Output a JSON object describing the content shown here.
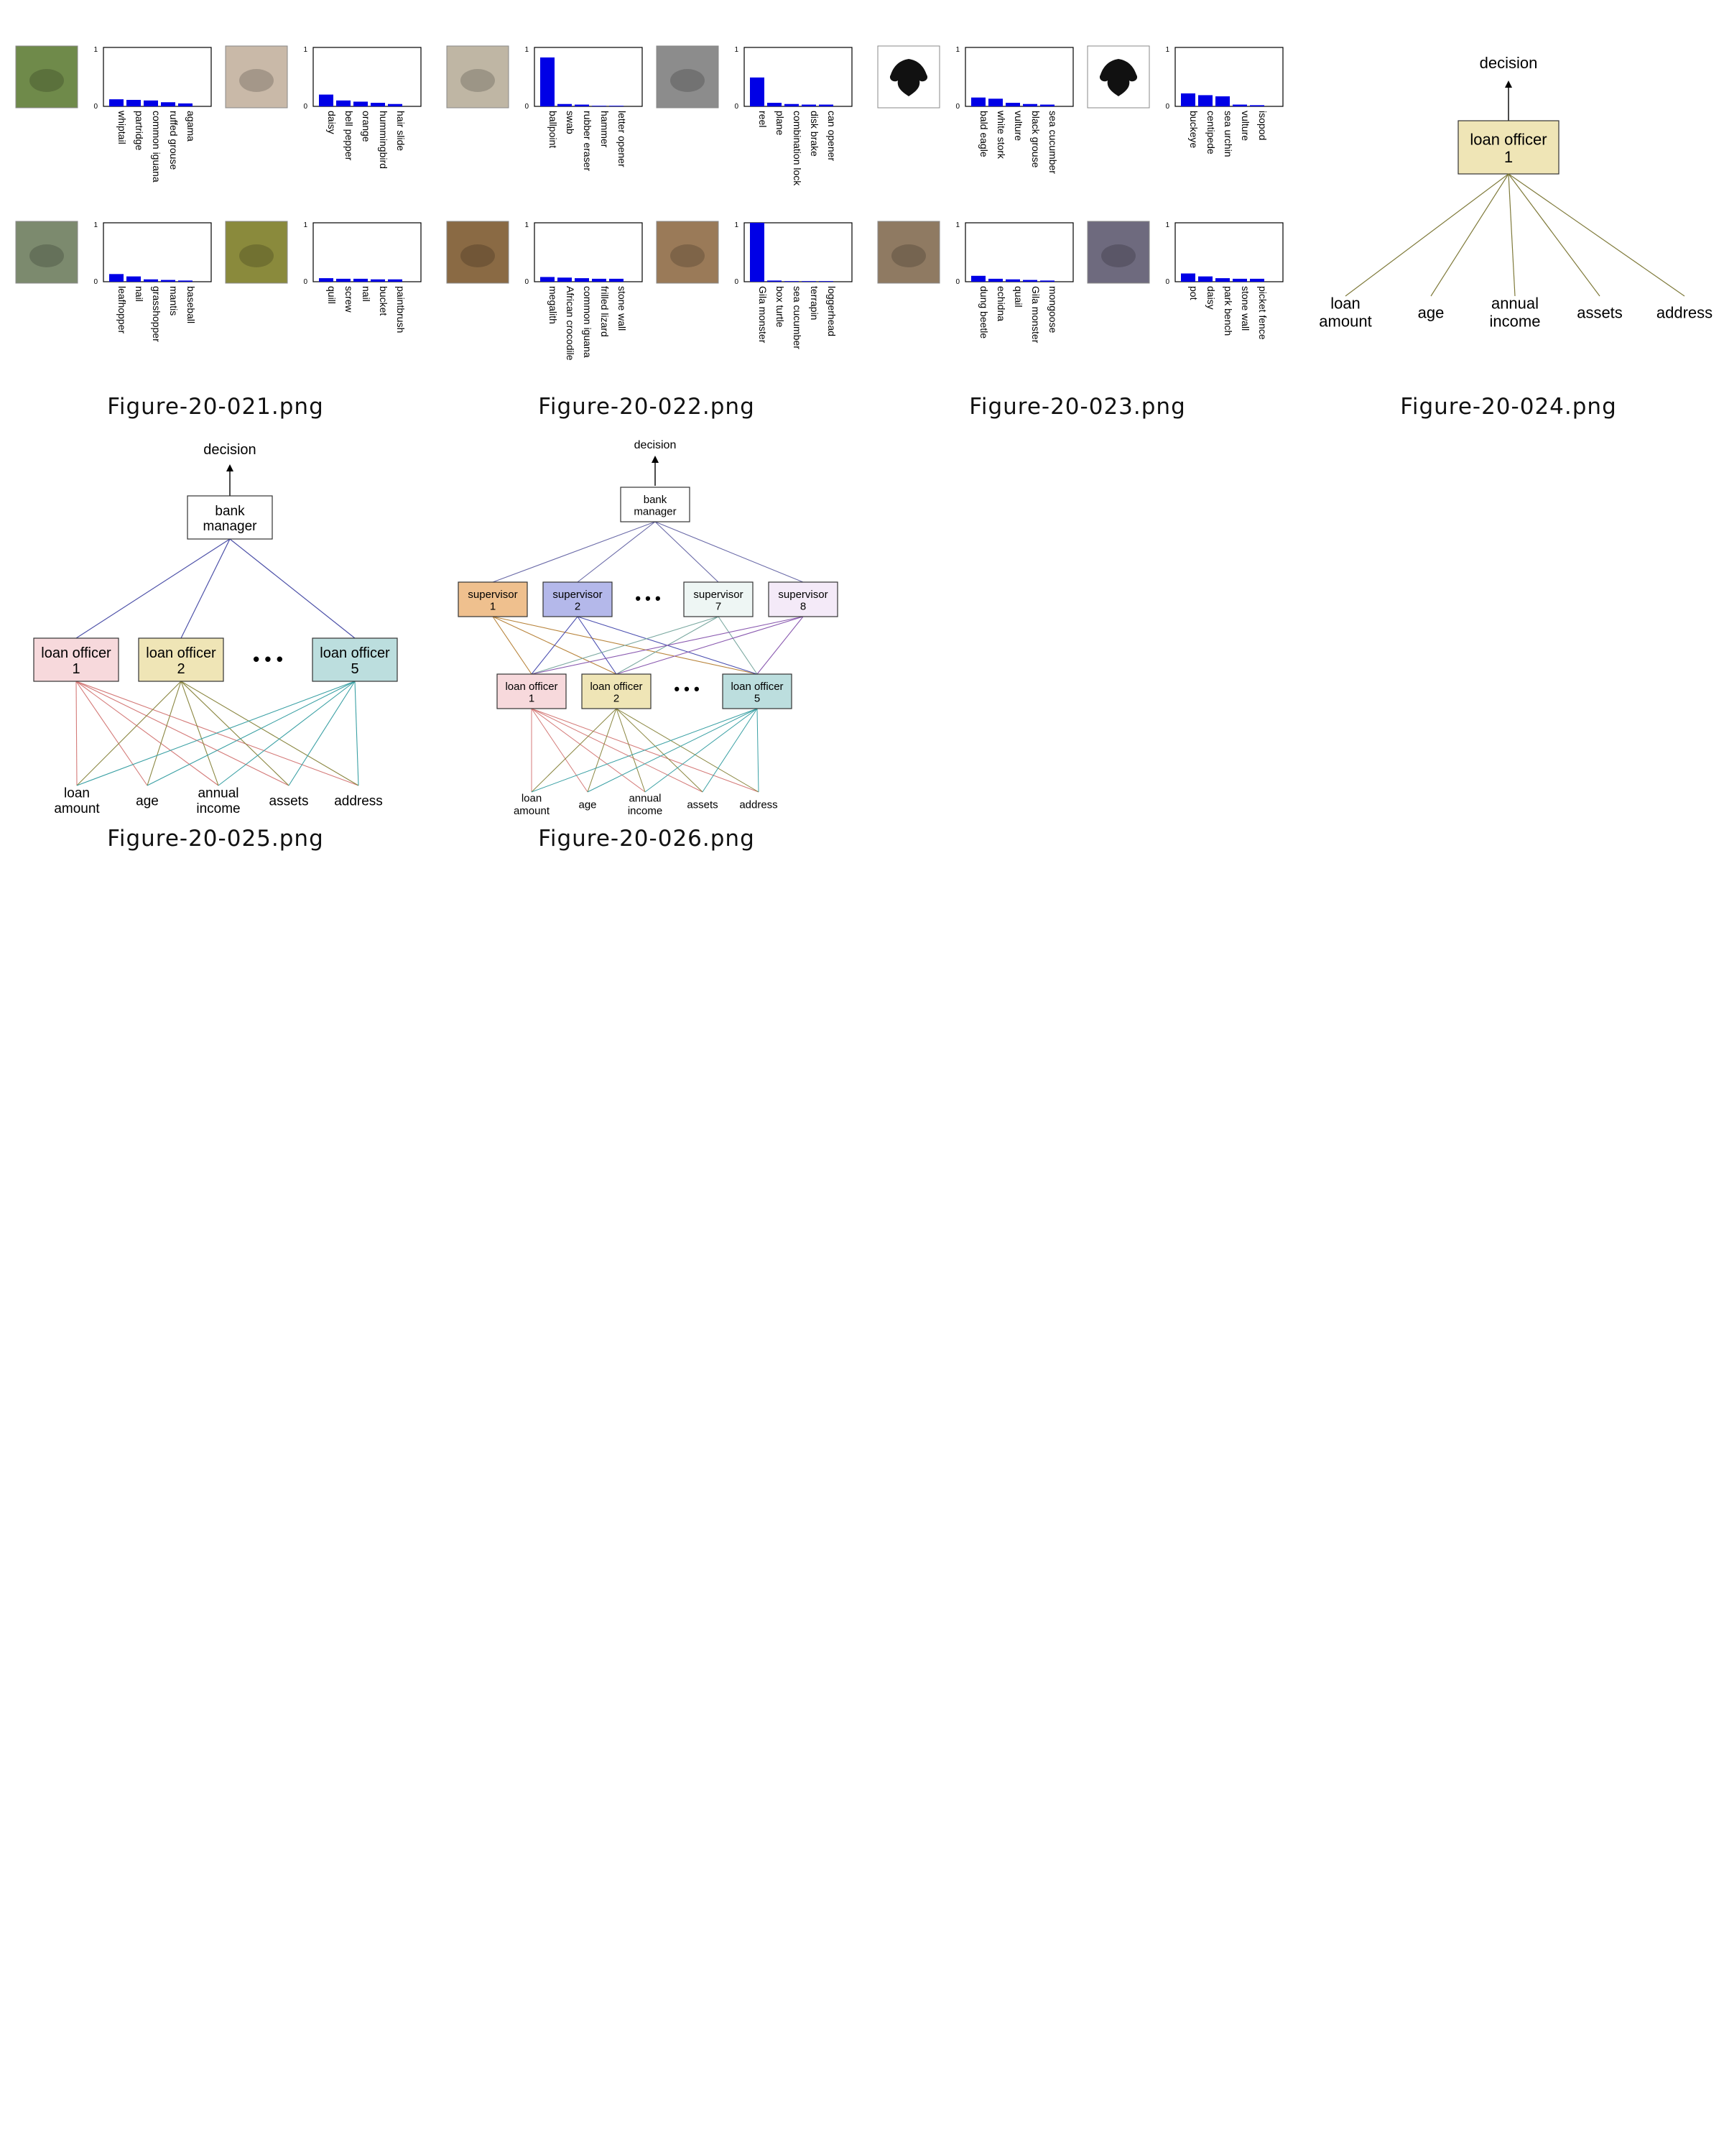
{
  "gallery": {
    "thumbnails": [
      {
        "caption": "Figure-20-021.png",
        "kind": "classifier-panels",
        "panels": [
          {
            "photo": "lizard-on-grass-photo",
            "photo_color": "#6f8a4a",
            "ymax": "1",
            "ymin": "0",
            "labels": [
              "whiptail",
              "partridge",
              "common iguana",
              "ruffed grouse",
              "agama"
            ],
            "values": [
              0.12,
              0.11,
              0.1,
              0.07,
              0.05
            ]
          },
          {
            "photo": "red-tulip-photo",
            "photo_color": "#c9b9a8",
            "ymax": "1",
            "ymin": "0",
            "labels": [
              "daisy",
              "bell pepper",
              "orange",
              "hummingbird",
              "hair slide"
            ],
            "values": [
              0.2,
              0.1,
              0.08,
              0.06,
              0.04
            ]
          },
          {
            "photo": "boat-on-water-photo",
            "photo_color": "#7c8a6e",
            "ymax": "1",
            "ymin": "0",
            "labels": [
              "leafhopper",
              "nail",
              "grasshopper",
              "mantis",
              "baseball"
            ],
            "values": [
              0.13,
              0.09,
              0.04,
              0.03,
              0.02
            ]
          },
          {
            "photo": "spring-coil-photo",
            "photo_color": "#8a8a3c",
            "ymax": "1",
            "ymin": "0",
            "labels": [
              "quill",
              "screw",
              "nail",
              "bucket",
              "paintbrush"
            ],
            "values": [
              0.06,
              0.05,
              0.05,
              0.04,
              0.04
            ]
          }
        ]
      },
      {
        "caption": "Figure-20-022.png",
        "kind": "classifier-panels",
        "panels": [
          {
            "photo": "pen-on-paper-photo",
            "photo_color": "#bfb6a4",
            "ymax": "1",
            "ymin": "0",
            "labels": [
              "ballpoint",
              "swab",
              "rubber eraser",
              "hammer",
              "letter opener"
            ],
            "values": [
              0.83,
              0.04,
              0.03,
              0.01,
              0.01
            ]
          },
          {
            "photo": "gray-object-photo",
            "photo_color": "#8c8c8c",
            "ymax": "1",
            "ymin": "0",
            "labels": [
              "reel",
              "plane",
              "combination lock",
              "disk brake",
              "can opener"
            ],
            "values": [
              0.49,
              0.06,
              0.04,
              0.03,
              0.03
            ]
          },
          {
            "photo": "bird-on-ground-photo",
            "photo_color": "#8a6a44",
            "ymax": "1",
            "ymin": "0",
            "labels": [
              "megalith",
              "African crocodile",
              "common iguana",
              "frilled lizard",
              "stone wall"
            ],
            "values": [
              0.08,
              0.07,
              0.06,
              0.05,
              0.05
            ]
          },
          {
            "photo": "pine-cone-photo",
            "photo_color": "#9a7a58",
            "ymax": "1",
            "ymin": "0",
            "labels": [
              "Gila monster",
              "box turtle",
              "sea cucumber",
              "terrapin",
              "loggerhead"
            ],
            "values": [
              1.0,
              0.02,
              0.01,
              0.01,
              0.01
            ]
          }
        ]
      },
      {
        "caption": "Figure-20-023.png",
        "kind": "classifier-panels",
        "panels": [
          {
            "photo": "inkblot-photo",
            "photo_color": "#ffffff",
            "ymax": "1",
            "ymin": "0",
            "labels": [
              "bald eagle",
              "white stork",
              "vulture",
              "black grouse",
              "sea cucumber"
            ],
            "values": [
              0.15,
              0.13,
              0.06,
              0.04,
              0.03
            ]
          },
          {
            "photo": "inkblot-photo",
            "photo_color": "#ffffff",
            "ymax": "1",
            "ymin": "0",
            "labels": [
              "buckeye",
              "centipede",
              "sea urchin",
              "vulture",
              "isopod"
            ],
            "values": [
              0.22,
              0.19,
              0.17,
              0.03,
              0.02
            ]
          },
          {
            "photo": "dirt-texture-photo",
            "photo_color": "#8f7a62",
            "ymax": "1",
            "ymin": "0",
            "labels": [
              "dung beetle",
              "echidna",
              "quail",
              "Gila monster",
              "mongoose"
            ],
            "values": [
              0.1,
              0.05,
              0.04,
              0.03,
              0.02
            ]
          },
          {
            "photo": "lavender-plants-photo",
            "photo_color": "#6e6a7e",
            "ymax": "1",
            "ymin": "0",
            "labels": [
              "pot",
              "daisy",
              "park bench",
              "stone wall",
              "picket fence"
            ],
            "values": [
              0.14,
              0.09,
              0.06,
              0.05,
              0.05
            ]
          }
        ]
      },
      {
        "caption": "Figure-20-024.png",
        "kind": "tree-single",
        "decision": "decision",
        "officer": {
          "line1": "loan officer",
          "line2": "1",
          "fill": "#efe5b6"
        },
        "inputs": [
          {
            "line1": "loan",
            "line2": "amount"
          },
          {
            "line1": "age",
            "line2": ""
          },
          {
            "line1": "annual",
            "line2": "income"
          },
          {
            "line1": "assets",
            "line2": ""
          },
          {
            "line1": "address",
            "line2": ""
          }
        ],
        "line_color": "#7f7a3a"
      },
      {
        "caption": "Figure-20-025.png",
        "kind": "tree-manager",
        "decision": "decision",
        "manager": {
          "line1": "bank",
          "line2": "manager"
        },
        "ellipsis": "• • •",
        "officers": [
          {
            "line1": "loan officer",
            "line2": "1",
            "fill": "#f7d9dc",
            "color": "#d47a78"
          },
          {
            "line1": "loan officer",
            "line2": "2",
            "fill": "#efe5b6",
            "color": "#8a8640"
          },
          {
            "line1": "loan officer",
            "line2": "5",
            "fill": "#bcdede",
            "color": "#3aa0a4"
          }
        ],
        "inputs": [
          {
            "line1": "loan",
            "line2": "amount"
          },
          {
            "line1": "age",
            "line2": ""
          },
          {
            "line1": "annual",
            "line2": "income"
          },
          {
            "line1": "assets",
            "line2": ""
          },
          {
            "line1": "address",
            "line2": ""
          }
        ],
        "manager_line_color": "#4c50a8"
      },
      {
        "caption": "Figure-20-026.png",
        "kind": "tree-supervisors",
        "decision": "decision",
        "manager": {
          "line1": "bank",
          "line2": "manager"
        },
        "ellipsis": "• • •",
        "supervisors": [
          {
            "line1": "supervisor",
            "line2": "1",
            "fill": "#efc08e",
            "color": "#b8843c"
          },
          {
            "line1": "supervisor",
            "line2": "2",
            "fill": "#b4b8ea",
            "color": "#4c50b0"
          },
          {
            "line1": "supervisor",
            "line2": "7",
            "fill": "#eef6f4",
            "color": "#7aa8a0"
          },
          {
            "line1": "supervisor",
            "line2": "8",
            "fill": "#f4eaf8",
            "color": "#8a5ab0"
          }
        ],
        "officers": [
          {
            "line1": "loan officer",
            "line2": "1",
            "fill": "#f7d9dc",
            "color": "#d47a78"
          },
          {
            "line1": "loan officer",
            "line2": "2",
            "fill": "#efe5b6",
            "color": "#8a8640"
          },
          {
            "line1": "loan officer",
            "line2": "5",
            "fill": "#bcdede",
            "color": "#3aa0a4"
          }
        ],
        "inputs": [
          {
            "line1": "loan",
            "line2": "amount"
          },
          {
            "line1": "age",
            "line2": ""
          },
          {
            "line1": "annual",
            "line2": "income"
          },
          {
            "line1": "assets",
            "line2": ""
          },
          {
            "line1": "address",
            "line2": ""
          }
        ],
        "manager_line_color": "#6a6aa8"
      }
    ]
  }
}
